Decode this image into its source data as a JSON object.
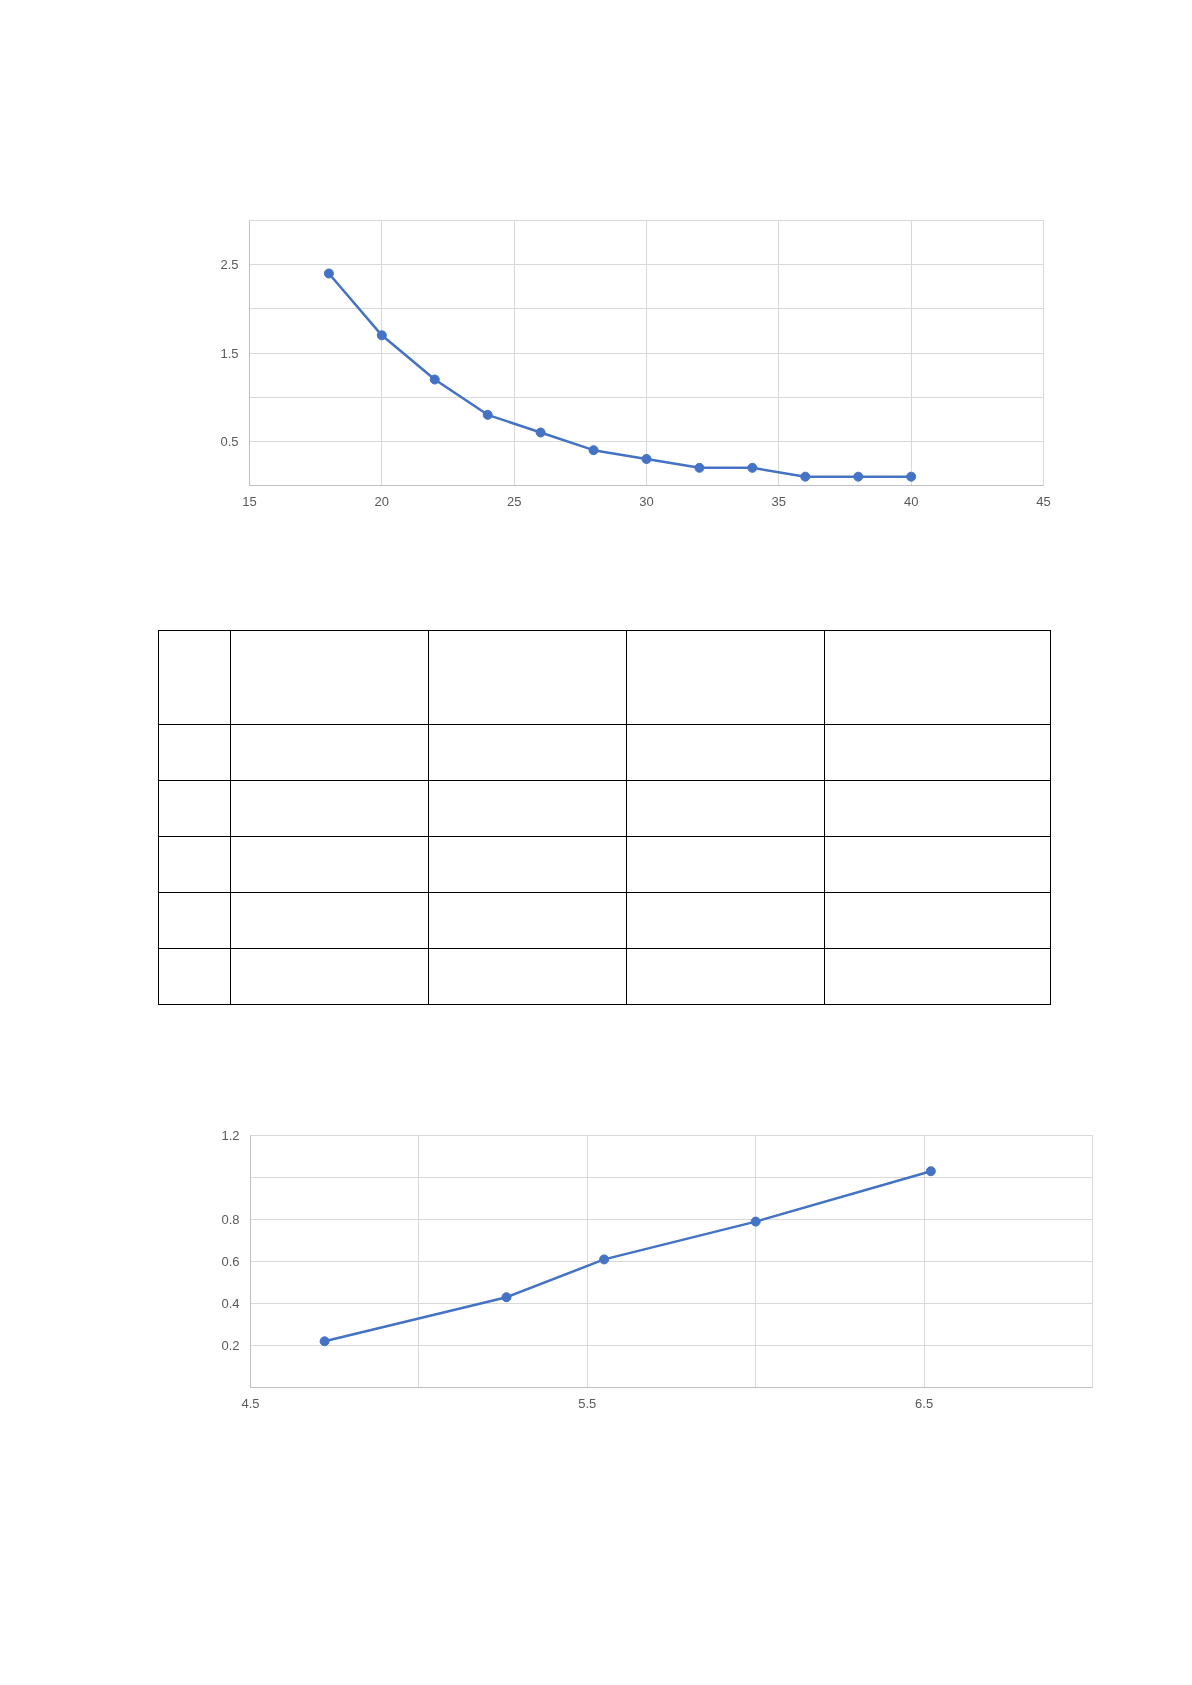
{
  "chart_data": [
    {
      "type": "line",
      "x": [
        18,
        20,
        22,
        24,
        26,
        28,
        30,
        32,
        34,
        36,
        38,
        40
      ],
      "series": [
        {
          "color": "#4472c4",
          "values": [
            2.4,
            1.7,
            1.2,
            0.8,
            0.6,
            0.4,
            0.3,
            0.2,
            0.2,
            0.1,
            0.1,
            0.1
          ]
        }
      ],
      "xlim": [
        15,
        45
      ],
      "xticks": [
        15,
        20,
        25,
        30,
        35,
        40,
        45
      ],
      "ylim": [
        0,
        3
      ],
      "yticks": [
        {
          "value": 0,
          "label": null
        },
        0.5,
        {
          "value": 1,
          "label": null
        },
        1.5,
        {
          "value": 2,
          "label": null
        },
        2.5,
        {
          "value": 3,
          "label": null
        }
      ],
      "grid": true,
      "marker": "circle",
      "line_style": "solid"
    },
    {
      "type": "line",
      "x": [
        4.72,
        5.26,
        5.55,
        6.0,
        6.52
      ],
      "series": [
        {
          "color": "#4472c4",
          "values": [
            0.22,
            0.43,
            0.61,
            0.79,
            1.03
          ]
        }
      ],
      "xlim": [
        4.5,
        7
      ],
      "xticks": [
        4.5,
        {
          "value": 5,
          "label": null
        },
        5.5,
        {
          "value": 6,
          "label": null
        },
        6.5,
        {
          "value": 7,
          "label": null
        }
      ],
      "ylim": [
        0,
        1.2
      ],
      "yticks": [
        {
          "value": 0,
          "label": null
        },
        0.2,
        0.4,
        0.6,
        0.8,
        {
          "value": 1,
          "label": null
        },
        1.2
      ],
      "grid": true,
      "marker": "circle",
      "line_style": "solid"
    }
  ]
}
